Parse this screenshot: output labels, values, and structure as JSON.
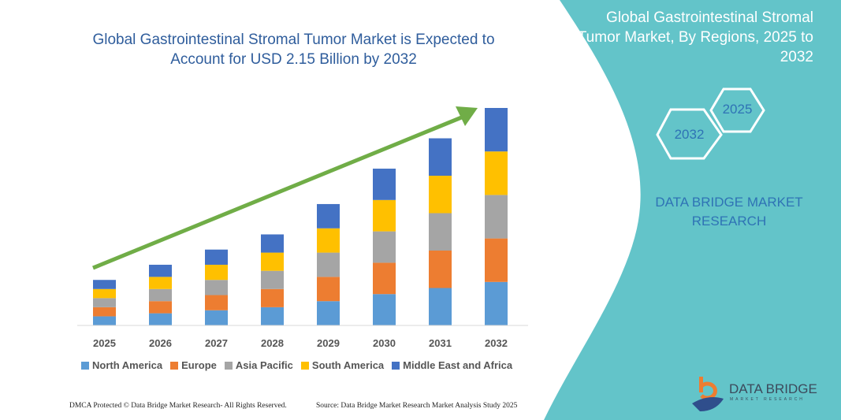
{
  "header": {
    "title": "Global Gastrointestinal Stromal Tumor Market is Expected to Account for USD 2.15 Billion by 2032"
  },
  "side_panel": {
    "title": "Global Gastrointestinal Stromal Tumor Market, By Regions, 2025 to 2032",
    "hex_start": "2025",
    "hex_end": "2032",
    "brand": "DATA BRIDGE MARKET RESEARCH",
    "logo_text": "DATA BRIDGE",
    "logo_sub": "MARKET RESEARCH",
    "color": "#63c4c9"
  },
  "footer": {
    "left": "DMCA Protected © Data Bridge Market Research-  All Rights Reserved.",
    "right": "Source: Data Bridge Market Research  Market Analysis Study 2025"
  },
  "chart_data": {
    "type": "bar",
    "stacked": true,
    "title": "Global Gastrointestinal Stromal Tumor Market is Expected to Account for USD 2.15 Billion by 2032",
    "xlabel": "",
    "ylabel": "",
    "grid": false,
    "legend_placement": "bottom",
    "categories": [
      "2025",
      "2026",
      "2027",
      "2028",
      "2029",
      "2030",
      "2031",
      "2032"
    ],
    "ylim": [
      0,
      2.15
    ],
    "series": [
      {
        "name": "North America",
        "color": "#5b9bd5",
        "values": [
          0.09,
          0.12,
          0.15,
          0.18,
          0.24,
          0.31,
          0.37,
          0.43
        ]
      },
      {
        "name": "Europe",
        "color": "#ed7d31",
        "values": [
          0.09,
          0.12,
          0.15,
          0.18,
          0.24,
          0.31,
          0.37,
          0.43
        ]
      },
      {
        "name": "Asia Pacific",
        "color": "#a5a5a5",
        "values": [
          0.09,
          0.12,
          0.15,
          0.18,
          0.24,
          0.31,
          0.37,
          0.43
        ]
      },
      {
        "name": "South America",
        "color": "#ffc000",
        "values": [
          0.09,
          0.12,
          0.15,
          0.18,
          0.24,
          0.31,
          0.37,
          0.43
        ]
      },
      {
        "name": "Middle East and Africa",
        "color": "#4472c4",
        "values": [
          0.09,
          0.12,
          0.15,
          0.18,
          0.24,
          0.31,
          0.37,
          0.43
        ]
      }
    ],
    "trend_arrow_color": "#70ad47"
  }
}
